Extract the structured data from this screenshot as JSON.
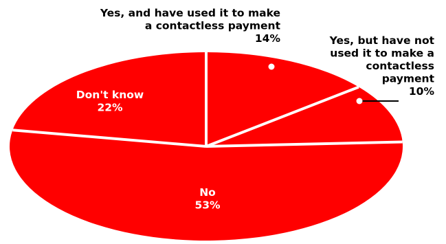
{
  "chart_data": {
    "type": "pie",
    "slices": [
      {
        "label": "Yes, and have used it to make a contactless payment",
        "label_lines": [
          "Yes, and have used it to make",
          "a contactless payment"
        ],
        "value": 14,
        "value_label": "14%"
      },
      {
        "label": "Yes, but have not used it to make a contactless payment",
        "label_lines": [
          "Yes, but have not",
          "used it to make a",
          "contactless",
          "payment"
        ],
        "value": 10,
        "value_label": "10%"
      },
      {
        "label": "No",
        "label_lines": [
          "No"
        ],
        "value": 53,
        "value_label": "53%"
      },
      {
        "label": "Don't know",
        "label_lines": [
          "Don't know"
        ],
        "value": 22,
        "value_label": "22%"
      }
    ],
    "colors": {
      "slice": "#ff0000",
      "edge": "#ffffff",
      "inside_text": "#ffffff",
      "outside_text": "#000000",
      "marker": "#ffffff"
    }
  }
}
